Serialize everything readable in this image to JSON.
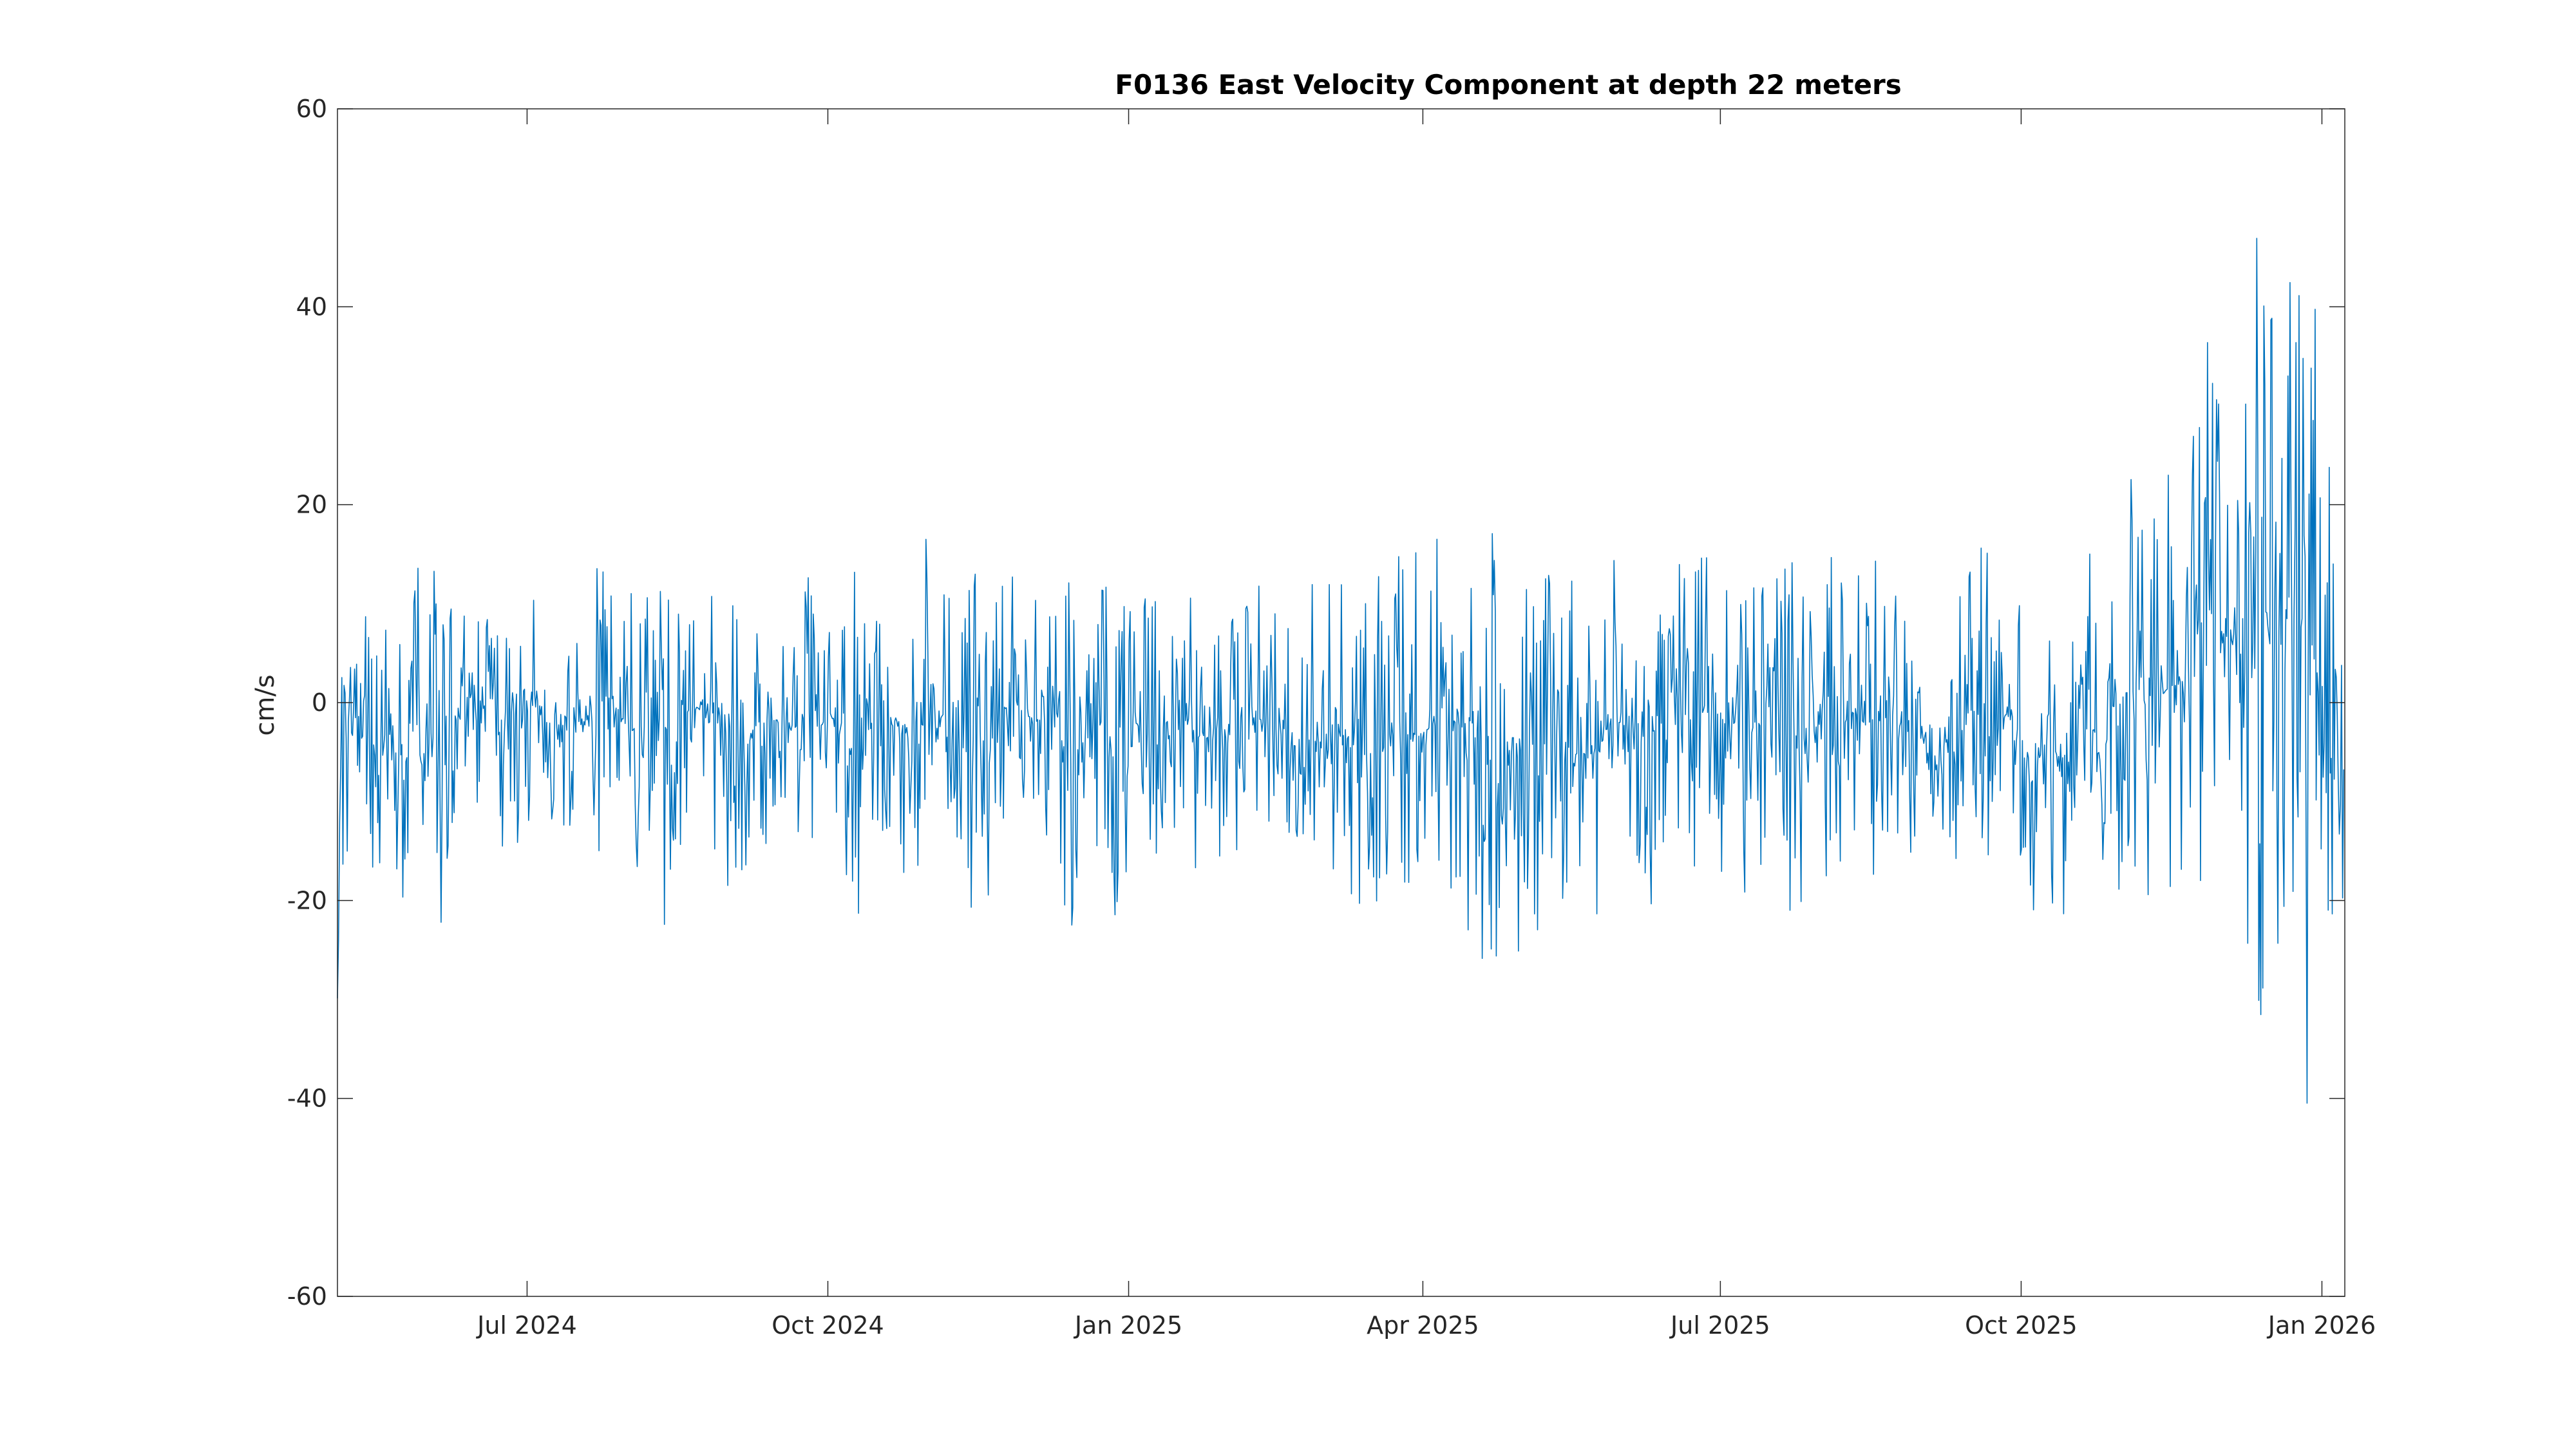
{
  "chart_data": {
    "type": "line",
    "title": "F0136 East Velocity Component at depth 22 meters",
    "xlabel": "",
    "ylabel": "cm/s",
    "x_type": "date",
    "xlim": [
      "2024-05-04",
      "2026-01-08"
    ],
    "ylim": [
      -60,
      60
    ],
    "grid": false,
    "legend": "none",
    "y_ticks": [
      -60,
      -40,
      -20,
      0,
      20,
      40,
      60
    ],
    "x_ticks": [
      {
        "date": "2024-07-01",
        "label": "Jul 2024"
      },
      {
        "date": "2024-10-01",
        "label": "Oct 2024"
      },
      {
        "date": "2025-01-01",
        "label": "Jan 2025"
      },
      {
        "date": "2025-04-01",
        "label": "Apr 2025"
      },
      {
        "date": "2025-07-01",
        "label": "Jul 2025"
      },
      {
        "date": "2025-10-01",
        "label": "Oct 2025"
      },
      {
        "date": "2026-01-01",
        "label": "Jan 2026"
      }
    ],
    "series": [
      {
        "name": "",
        "color": "#0072BD",
        "x": [
          "2024-05-04",
          "2024-05-06",
          "2024-05-08",
          "2024-05-12",
          "2024-05-16",
          "2024-05-20",
          "2024-05-24",
          "2024-05-28",
          "2024-06-01",
          "2024-06-05",
          "2024-06-09",
          "2024-06-13",
          "2024-06-17",
          "2024-06-21",
          "2024-06-25",
          "2024-06-29",
          "2024-07-03",
          "2024-07-07",
          "2024-07-11",
          "2024-07-15",
          "2024-07-19",
          "2024-07-23",
          "2024-07-27",
          "2024-07-31",
          "2024-08-04",
          "2024-08-08",
          "2024-08-12",
          "2024-08-16",
          "2024-08-20",
          "2024-08-24",
          "2024-08-28",
          "2024-09-01",
          "2024-09-05",
          "2024-09-09",
          "2024-09-13",
          "2024-09-17",
          "2024-09-21",
          "2024-09-25",
          "2024-09-29",
          "2024-10-03",
          "2024-10-07",
          "2024-10-11",
          "2024-10-15",
          "2024-10-19",
          "2024-10-23",
          "2024-10-27",
          "2024-10-31",
          "2024-11-04",
          "2024-11-08",
          "2024-11-12",
          "2024-11-16",
          "2024-11-20",
          "2024-11-24",
          "2024-11-28",
          "2024-12-02",
          "2024-12-06",
          "2024-12-10",
          "2024-12-14",
          "2024-12-18",
          "2024-12-22",
          "2024-12-26",
          "2024-12-30",
          "2025-01-03",
          "2025-01-07",
          "2025-01-11",
          "2025-01-15",
          "2025-01-19",
          "2025-01-23",
          "2025-01-27",
          "2025-01-31",
          "2025-02-04",
          "2025-02-08",
          "2025-02-12",
          "2025-02-16",
          "2025-02-20",
          "2025-02-24",
          "2025-02-28",
          "2025-03-04",
          "2025-03-08",
          "2025-03-12",
          "2025-03-16",
          "2025-03-20",
          "2025-03-24",
          "2025-03-28",
          "2025-04-01",
          "2025-04-05",
          "2025-04-09",
          "2025-04-13",
          "2025-04-17",
          "2025-04-21",
          "2025-04-25",
          "2025-04-29",
          "2025-05-03",
          "2025-05-07",
          "2025-05-11",
          "2025-05-15",
          "2025-05-19",
          "2025-05-23",
          "2025-05-27",
          "2025-05-31",
          "2025-06-04",
          "2025-06-08",
          "2025-06-12",
          "2025-06-16",
          "2025-06-20",
          "2025-06-24",
          "2025-06-28",
          "2025-07-02",
          "2025-07-06",
          "2025-07-10",
          "2025-07-14",
          "2025-07-18",
          "2025-07-22",
          "2025-07-26",
          "2025-07-30",
          "2025-08-03",
          "2025-08-07",
          "2025-08-11",
          "2025-08-15",
          "2025-08-19",
          "2025-08-23",
          "2025-08-27",
          "2025-08-31",
          "2025-09-04",
          "2025-09-08",
          "2025-09-12",
          "2025-09-16",
          "2025-09-20",
          "2025-09-24",
          "2025-09-28",
          "2025-10-02",
          "2025-10-06",
          "2025-10-10",
          "2025-10-14",
          "2025-10-18",
          "2025-10-22",
          "2025-10-26",
          "2025-10-30",
          "2025-11-03",
          "2025-11-07",
          "2025-11-11",
          "2025-11-15",
          "2025-11-19",
          "2025-11-23",
          "2025-11-27",
          "2025-12-01",
          "2025-12-05",
          "2025-12-09",
          "2025-12-13",
          "2025-12-17",
          "2025-12-21",
          "2025-12-25",
          "2025-12-29",
          "2026-01-02",
          "2026-01-06",
          "2026-01-08"
        ],
        "max": [
          -27,
          19,
          17,
          12,
          11,
          10,
          13,
          15,
          15,
          12,
          11,
          14,
          13,
          10,
          11,
          21,
          12,
          10,
          11,
          10,
          12,
          14,
          15,
          12,
          12,
          13,
          11,
          10,
          12,
          12,
          14,
          12,
          13,
          11,
          12,
          15,
          12,
          14,
          10,
          11,
          12,
          15,
          11,
          12,
          13,
          14,
          17,
          13,
          11,
          15,
          13,
          12,
          14,
          13,
          12,
          13,
          11,
          13,
          10,
          12,
          14,
          13,
          11,
          12,
          10,
          11,
          12,
          13,
          14,
          13,
          12,
          13,
          11,
          12,
          11,
          13,
          12,
          14,
          13,
          11,
          12,
          14,
          15,
          16,
          20,
          24,
          19,
          19,
          17,
          19,
          15,
          18,
          17,
          14,
          15,
          13,
          12,
          14,
          13,
          16,
          14,
          13,
          16,
          17,
          15,
          14,
          22,
          13,
          12,
          14,
          18,
          14,
          16,
          12,
          13,
          19,
          13,
          14,
          15,
          14,
          12,
          12,
          15,
          13,
          13,
          12,
          15,
          16,
          13,
          14,
          12,
          13,
          11,
          11,
          13,
          19,
          14,
          24,
          22,
          33,
          20,
          25,
          22,
          28,
          41,
          30,
          33,
          38,
          57,
          38,
          44,
          52,
          43,
          36,
          25,
          24
        ],
        "min": [
          -30,
          -22,
          -22,
          -15,
          -22,
          -18,
          -25,
          -17,
          -20,
          -24,
          -14,
          -18,
          -13,
          -16,
          -15,
          -18,
          -12,
          -14,
          -16,
          -12,
          -18,
          -15,
          -14,
          -16,
          -18,
          -13,
          -23,
          -18,
          -12,
          -14,
          -16,
          -20,
          -24,
          -15,
          -16,
          -18,
          -17,
          -16,
          -15,
          -14,
          -20,
          -25,
          -14,
          -15,
          -17,
          -20,
          -14,
          -15,
          -16,
          -25,
          -18,
          -20,
          -15,
          -14,
          -15,
          -17,
          -13,
          -27,
          -18,
          -15,
          -22,
          -31,
          -16,
          -18,
          -15,
          -14,
          -15,
          -20,
          -22,
          -18,
          -15,
          -14,
          -16,
          -18,
          -20,
          -21,
          -20,
          -19,
          -18,
          -22,
          -21,
          -24,
          -20,
          -22,
          -27,
          -26,
          -22,
          -24,
          -22,
          -30,
          -31,
          -28,
          -20,
          -31,
          -20,
          -24,
          -22,
          -25,
          -20,
          -20,
          -18,
          -19,
          -22,
          -15,
          -16,
          -20,
          -18,
          -17,
          -16,
          -24,
          -18,
          -16,
          -22,
          -20,
          -20,
          -19,
          -17,
          -16,
          -20,
          -15,
          -16,
          -18,
          -16,
          -29,
          -22,
          -20,
          -16,
          -20,
          -17,
          -16,
          -24,
          -22,
          -20,
          -23,
          -19,
          -20,
          -25,
          -22,
          -20,
          -32,
          -20,
          -22,
          -18,
          -15,
          -22,
          -20,
          -20,
          -30,
          -32,
          -28,
          -25,
          -36,
          -44,
          -30,
          -20,
          -20
        ]
      }
    ]
  }
}
